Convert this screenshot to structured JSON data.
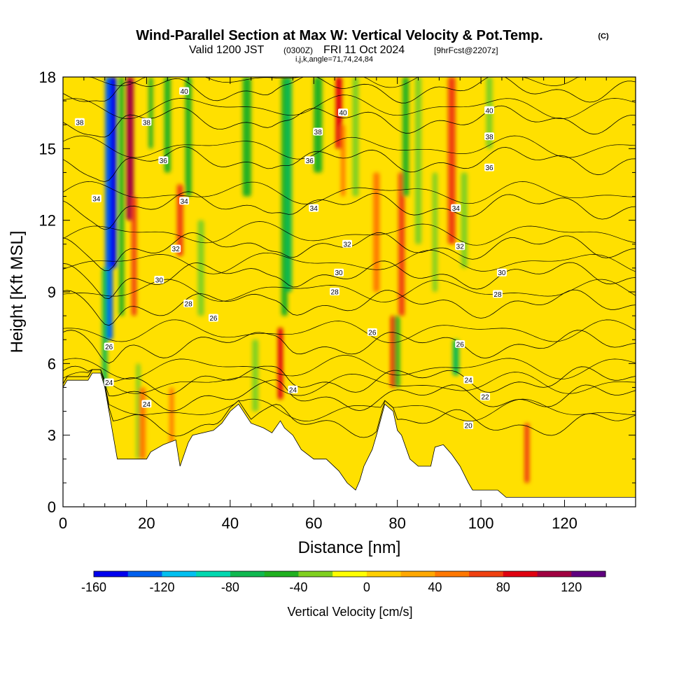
{
  "title": {
    "main": "Wind-Parallel Section at Max W: Vertical Velocity & Pot.Temp.",
    "copyright": "(C)",
    "valid_prefix": "Valid 1200 JST",
    "utc": "(0300Z)",
    "date": "FRI 11 Oct 2024",
    "forecast": "[9hrFcst@2207z]",
    "params": "i,j,k,angle=71,74,24,84"
  },
  "chart_data": {
    "type": "heatmap",
    "xlabel": "Distance [nm]",
    "ylabel": "Height [Kft MSL]",
    "xlim": [
      0,
      137
    ],
    "ylim": [
      0,
      18
    ],
    "x_ticks": [
      0,
      20,
      40,
      60,
      80,
      100,
      120
    ],
    "y_ticks": [
      0,
      3,
      6,
      9,
      12,
      15,
      18
    ],
    "colorbar": {
      "label": "Vertical Velocity [cm/s]",
      "range": [
        -160,
        140
      ],
      "step": 20,
      "tick_labels": [
        -160,
        -120,
        -80,
        -40,
        0,
        40,
        80,
        120
      ],
      "colors": [
        "#0000ee",
        "#0060ee",
        "#00c0f0",
        "#00d8b0",
        "#10b850",
        "#20b020",
        "#80d020",
        "#ffff00",
        "#ffd000",
        "#ffa800",
        "#ff7800",
        "#f04010",
        "#e00010",
        "#a00040",
        "#600080"
      ]
    },
    "vertical_velocity_cells": [
      {
        "x": 11,
        "w": 1.8,
        "y0": 7,
        "y1": 18,
        "value": -140
      },
      {
        "x": 12,
        "w": 1.6,
        "y0": 10,
        "y1": 18,
        "value": -150
      },
      {
        "x": 10,
        "w": 1.2,
        "y0": 5,
        "y1": 10,
        "value": -70
      },
      {
        "x": 14,
        "w": 1.2,
        "y0": 8,
        "y1": 18,
        "value": -60
      },
      {
        "x": 16,
        "w": 1.8,
        "y0": 12,
        "y1": 18,
        "value": 110
      },
      {
        "x": 17,
        "w": 1.2,
        "y0": 8,
        "y1": 13,
        "value": 70
      },
      {
        "x": 18,
        "w": 1.0,
        "y0": 2,
        "y1": 6,
        "value": -40
      },
      {
        "x": 19,
        "w": 1.5,
        "y0": 2,
        "y1": 5,
        "value": 40
      },
      {
        "x": 21,
        "w": 1.0,
        "y0": 15,
        "y1": 18,
        "value": -60
      },
      {
        "x": 25,
        "w": 1.5,
        "y0": 14,
        "y1": 18,
        "value": -50
      },
      {
        "x": 26,
        "w": 1.0,
        "y0": 2.5,
        "y1": 5,
        "value": 50
      },
      {
        "x": 28,
        "w": 1.5,
        "y0": 10.5,
        "y1": 13.5,
        "value": 70
      },
      {
        "x": 30,
        "w": 1.5,
        "y0": 13,
        "y1": 18,
        "value": -50
      },
      {
        "x": 33,
        "w": 1.5,
        "y0": 8,
        "y1": 12,
        "value": -40
      },
      {
        "x": 44,
        "w": 2.0,
        "y0": 13,
        "y1": 18,
        "value": -50
      },
      {
        "x": 46,
        "w": 1.5,
        "y0": 4,
        "y1": 7,
        "value": -40
      },
      {
        "x": 52,
        "w": 1.2,
        "y0": 4.5,
        "y1": 7.5,
        "value": 80
      },
      {
        "x": 53,
        "w": 1.5,
        "y0": 8,
        "y1": 18,
        "value": -60
      },
      {
        "x": 54,
        "w": 1.5,
        "y0": 9,
        "y1": 18,
        "value": -80
      },
      {
        "x": 61,
        "w": 2.0,
        "y0": 14,
        "y1": 18,
        "value": -50
      },
      {
        "x": 66,
        "w": 1.5,
        "y0": 15,
        "y1": 18,
        "value": 80
      },
      {
        "x": 67,
        "w": 1.0,
        "y0": 13,
        "y1": 16,
        "value": 50
      },
      {
        "x": 70,
        "w": 1.5,
        "y0": 13,
        "y1": 18,
        "value": -40
      },
      {
        "x": 75,
        "w": 1.5,
        "y0": 9,
        "y1": 14,
        "value": 40
      },
      {
        "x": 79,
        "w": 1.2,
        "y0": 5,
        "y1": 8,
        "value": 90
      },
      {
        "x": 80,
        "w": 1.2,
        "y0": 5,
        "y1": 8,
        "value": -50
      },
      {
        "x": 81,
        "w": 1.5,
        "y0": 8,
        "y1": 14,
        "value": 60
      },
      {
        "x": 82,
        "w": 1.5,
        "y0": 13,
        "y1": 18,
        "value": -50
      },
      {
        "x": 85,
        "w": 1.5,
        "y0": 11,
        "y1": 18,
        "value": -40
      },
      {
        "x": 89,
        "w": 1.2,
        "y0": 9,
        "y1": 14,
        "value": -30
      },
      {
        "x": 93,
        "w": 1.8,
        "y0": 11,
        "y1": 18,
        "value": 70
      },
      {
        "x": 94,
        "w": 1.5,
        "y0": 5.5,
        "y1": 7,
        "value": -70
      },
      {
        "x": 96,
        "w": 1.5,
        "y0": 10,
        "y1": 14,
        "value": -40
      },
      {
        "x": 102,
        "w": 1.5,
        "y0": 15,
        "y1": 18,
        "value": -40
      },
      {
        "x": 111,
        "w": 1.2,
        "y0": 1,
        "y1": 3.5,
        "value": 70
      }
    ],
    "theta_contours": [
      {
        "label": "20",
        "base": 3.5
      },
      {
        "label": "22",
        "base": 4.6
      },
      {
        "label": "24",
        "base": 5.3
      },
      {
        "label": "26",
        "base": 6.8
      },
      {
        "label": "28",
        "base": 8.5
      },
      {
        "label": "30",
        "base": 9.7
      },
      {
        "label": "32",
        "base": 10.9
      },
      {
        "label": "34",
        "base": 12.6
      },
      {
        "label": "36",
        "base": 14.5
      },
      {
        "label": "38",
        "base": 16.2
      },
      {
        "label": "40",
        "base": 17.5
      }
    ],
    "contour_labels": [
      {
        "text": "38",
        "x": 4,
        "y": 16.1
      },
      {
        "text": "40",
        "x": 29,
        "y": 17.4
      },
      {
        "text": "38",
        "x": 20,
        "y": 16.1
      },
      {
        "text": "40",
        "x": 67,
        "y": 16.5
      },
      {
        "text": "38",
        "x": 61,
        "y": 15.7
      },
      {
        "text": "40",
        "x": 102,
        "y": 16.6
      },
      {
        "text": "38",
        "x": 102,
        "y": 15.5
      },
      {
        "text": "36",
        "x": 24,
        "y": 14.5
      },
      {
        "text": "36",
        "x": 59,
        "y": 14.5
      },
      {
        "text": "36",
        "x": 102,
        "y": 14.2
      },
      {
        "text": "34",
        "x": 8,
        "y": 12.9
      },
      {
        "text": "34",
        "x": 29,
        "y": 12.8
      },
      {
        "text": "34",
        "x": 60,
        "y": 12.5
      },
      {
        "text": "34",
        "x": 94,
        "y": 12.5
      },
      {
        "text": "32",
        "x": 27,
        "y": 10.8
      },
      {
        "text": "32",
        "x": 68,
        "y": 11
      },
      {
        "text": "32",
        "x": 95,
        "y": 10.9
      },
      {
        "text": "30",
        "x": 23,
        "y": 9.5
      },
      {
        "text": "30",
        "x": 66,
        "y": 9.8
      },
      {
        "text": "30",
        "x": 105,
        "y": 9.8
      },
      {
        "text": "28",
        "x": 30,
        "y": 8.5
      },
      {
        "text": "28",
        "x": 65,
        "y": 9
      },
      {
        "text": "28",
        "x": 104,
        "y": 8.9
      },
      {
        "text": "26",
        "x": 36,
        "y": 7.9
      },
      {
        "text": "26",
        "x": 74,
        "y": 7.3
      },
      {
        "text": "26",
        "x": 11,
        "y": 6.7
      },
      {
        "text": "26",
        "x": 95,
        "y": 6.8
      },
      {
        "text": "24",
        "x": 11,
        "y": 5.2
      },
      {
        "text": "24",
        "x": 20,
        "y": 4.3
      },
      {
        "text": "24",
        "x": 55,
        "y": 4.9
      },
      {
        "text": "24",
        "x": 97,
        "y": 5.3
      },
      {
        "text": "22",
        "x": 101,
        "y": 4.6
      },
      {
        "text": "20",
        "x": 97,
        "y": 3.4
      }
    ],
    "terrain": [
      [
        0,
        5
      ],
      [
        1,
        5.3
      ],
      [
        6,
        5.3
      ],
      [
        7,
        5.6
      ],
      [
        9,
        5.6
      ],
      [
        10,
        5
      ],
      [
        11,
        4
      ],
      [
        12,
        3
      ],
      [
        13,
        2
      ],
      [
        20,
        2
      ],
      [
        21,
        2.3
      ],
      [
        24,
        2.6
      ],
      [
        27,
        2.8
      ],
      [
        28,
        1.7
      ],
      [
        30,
        2.7
      ],
      [
        31,
        3
      ],
      [
        36,
        3.2
      ],
      [
        38,
        3.5
      ],
      [
        40,
        4
      ],
      [
        42,
        4.3
      ],
      [
        45,
        3.5
      ],
      [
        48,
        3.3
      ],
      [
        50,
        3.1
      ],
      [
        52,
        3.6
      ],
      [
        53,
        3.3
      ],
      [
        55,
        3
      ],
      [
        57,
        2.4
      ],
      [
        60,
        2
      ],
      [
        63,
        2
      ],
      [
        66,
        1.5
      ],
      [
        68,
        1
      ],
      [
        70,
        0.7
      ],
      [
        71,
        1.1
      ],
      [
        72,
        1.7
      ],
      [
        74,
        2.4
      ],
      [
        75,
        3
      ],
      [
        77,
        4.3
      ],
      [
        79,
        4
      ],
      [
        80,
        3.2
      ],
      [
        81,
        3
      ],
      [
        83,
        2
      ],
      [
        85,
        1.7
      ],
      [
        88,
        1.7
      ],
      [
        89,
        2.5
      ],
      [
        91,
        2.6
      ],
      [
        93,
        2.2
      ],
      [
        95,
        1.7
      ],
      [
        97,
        1
      ],
      [
        98,
        0.7
      ],
      [
        104,
        0.7
      ],
      [
        106,
        0.4
      ],
      [
        137,
        0.4
      ]
    ]
  }
}
